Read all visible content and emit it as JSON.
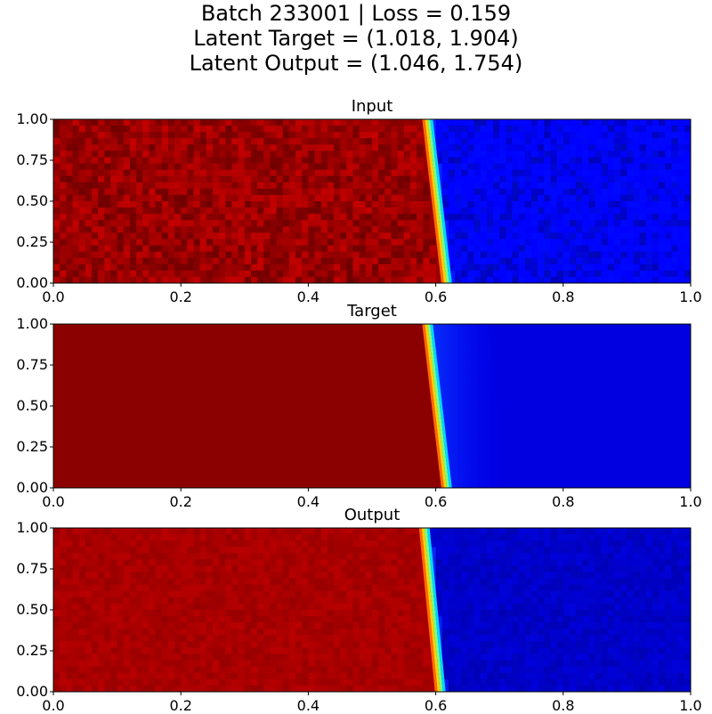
{
  "suptitle": {
    "line1": "Batch 233001  |  Loss = 0.159",
    "line2": "Latent Target = (1.018, 1.904)",
    "line3": "Latent Output = (1.046, 1.754)"
  },
  "chart_data": [
    {
      "type": "heatmap",
      "title": "Input",
      "colormap": "jet",
      "xlim": [
        0,
        1
      ],
      "ylim": [
        0,
        1
      ],
      "xticks": [
        "0.0",
        "0.2",
        "0.4",
        "0.6",
        "0.8",
        "1.0"
      ],
      "yticks": [
        "0.00",
        "0.25",
        "0.50",
        "0.75",
        "1.00"
      ],
      "front_x_at_y": [
        [
          1.0,
          0.585
        ],
        [
          0.0,
          0.615
        ]
      ],
      "left_color": "#990000",
      "right_color": "#0000ff",
      "noise": "high"
    },
    {
      "type": "heatmap",
      "title": "Target",
      "colormap": "jet",
      "xlim": [
        0,
        1
      ],
      "ylim": [
        0,
        1
      ],
      "xticks": [
        "0.0",
        "0.2",
        "0.4",
        "0.6",
        "0.8",
        "1.0"
      ],
      "yticks": [
        "0.00",
        "0.25",
        "0.50",
        "0.75",
        "1.00"
      ],
      "front_x_at_y": [
        [
          1.0,
          0.585
        ],
        [
          0.0,
          0.615
        ]
      ],
      "left_color": "#8b0000",
      "right_color": "#0000e0",
      "noise": "none"
    },
    {
      "type": "heatmap",
      "title": "Output",
      "colormap": "jet",
      "xlim": [
        0,
        1
      ],
      "ylim": [
        0,
        1
      ],
      "xticks": [
        "0.0",
        "0.2",
        "0.4",
        "0.6",
        "0.8",
        "1.0"
      ],
      "yticks": [
        "0.00",
        "0.25",
        "0.50",
        "0.75",
        "1.00"
      ],
      "front_x_at_y": [
        [
          1.0,
          0.58
        ],
        [
          0.0,
          0.605
        ]
      ],
      "left_color": "#a80000",
      "right_color": "#0000c8",
      "noise": "low"
    }
  ]
}
